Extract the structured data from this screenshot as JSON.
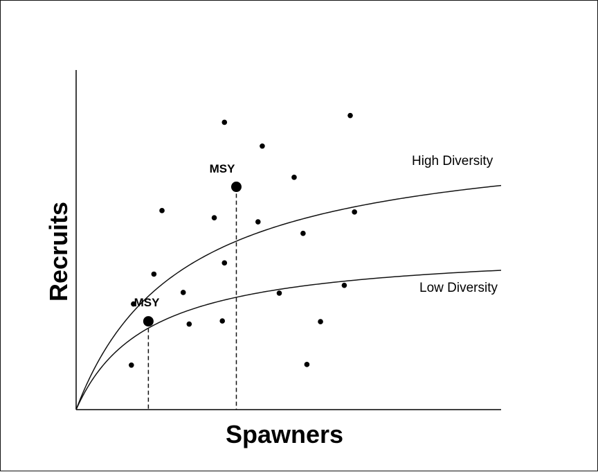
{
  "chart_data": {
    "type": "line",
    "title": "",
    "xlabel": "Spawners",
    "ylabel": "Recruits",
    "xlim": [
      0,
      100
    ],
    "ylim": [
      0,
      100
    ],
    "grid": false,
    "series": [
      {
        "name": "High Diversity",
        "style": "curve",
        "asymptote": 82.5,
        "half_saturation": 25,
        "msy": {
          "label": "MSY",
          "x": 37.7,
          "y": 65.6
        }
      },
      {
        "name": "Low Diversity",
        "style": "curve",
        "asymptote": 48,
        "half_saturation": 17,
        "msy": {
          "label": "MSY",
          "x": 17,
          "y": 26
        }
      }
    ],
    "scatter": {
      "name": "observations",
      "points": [
        [
          13.5,
          31.1
        ],
        [
          13,
          13.1
        ],
        [
          18.3,
          39.9
        ],
        [
          20.2,
          58.6
        ],
        [
          25.2,
          34.5
        ],
        [
          26.6,
          25.2
        ],
        [
          32.5,
          56.5
        ],
        [
          34.4,
          26.1
        ],
        [
          34.9,
          43.2
        ],
        [
          34.9,
          84.6
        ],
        [
          42.8,
          55.3
        ],
        [
          43.8,
          77.6
        ],
        [
          47.8,
          34.3
        ],
        [
          51.3,
          68.4
        ],
        [
          53.4,
          51.9
        ],
        [
          54.3,
          13.3
        ],
        [
          57.5,
          25.9
        ],
        [
          63.1,
          36.6
        ],
        [
          64.5,
          86.6
        ],
        [
          65.5,
          58.2
        ]
      ]
    }
  }
}
